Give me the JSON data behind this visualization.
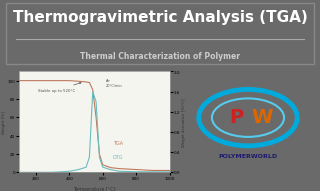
{
  "title": "Thermogravimetric Analysis (TGA)",
  "subtitle": "Thermal Characterization of Polymer",
  "title_bg": "#4a4a4a",
  "chart_bg": "#f5f5f0",
  "overall_bg": "#6a6a6a",
  "tga_color": "#c0785a",
  "dtg_color": "#6abcbe",
  "annotation_color": "#555555",
  "tga_x": [
    100,
    200,
    300,
    400,
    480,
    520,
    540,
    560,
    580,
    600,
    650,
    700,
    800,
    900,
    1000
  ],
  "tga_y": [
    100,
    100,
    100,
    100,
    99,
    98,
    90,
    60,
    20,
    8,
    5,
    4,
    3,
    2,
    2
  ],
  "dtg_x": [
    100,
    200,
    300,
    400,
    450,
    500,
    520,
    540,
    560,
    580,
    600,
    650,
    700,
    800,
    1000
  ],
  "dtg_y": [
    0,
    0,
    0,
    0.02,
    0.05,
    0.1,
    0.3,
    1.6,
    1.4,
    0.3,
    0.1,
    0.05,
    0.02,
    0.01,
    0.01
  ],
  "stable_label": "Stable up to 520°C",
  "annotation_air": "Air\n20°C/min",
  "tga_label": "TGA",
  "dtg_label": "DTG",
  "xlabel": "Temperature [°C]",
  "ylabel_left": "Weight [%]",
  "ylabel_right": "Weight derivative [%/°C]",
  "xlim": [
    100,
    1000
  ],
  "ylim_left": [
    0,
    110
  ],
  "ylim_right": [
    0,
    2.0
  ],
  "xticks": [
    200,
    400,
    600,
    800,
    1000
  ],
  "yticks_left": [
    0,
    20,
    40,
    60,
    80,
    100
  ],
  "yticks_right": [
    0.0,
    0.4,
    0.8,
    1.2,
    1.6,
    2.0
  ],
  "logo_brand": "POLYMERWORLD",
  "logo_P_color": "#cc2222",
  "logo_W_color": "#dd6600",
  "logo_ellipse_outer": "#00aadd",
  "logo_ellipse_inner": "#55ccee",
  "logo_brand_color": "#1a1a6e",
  "border_color": "#888888",
  "sep_color": "#aaaaaa"
}
